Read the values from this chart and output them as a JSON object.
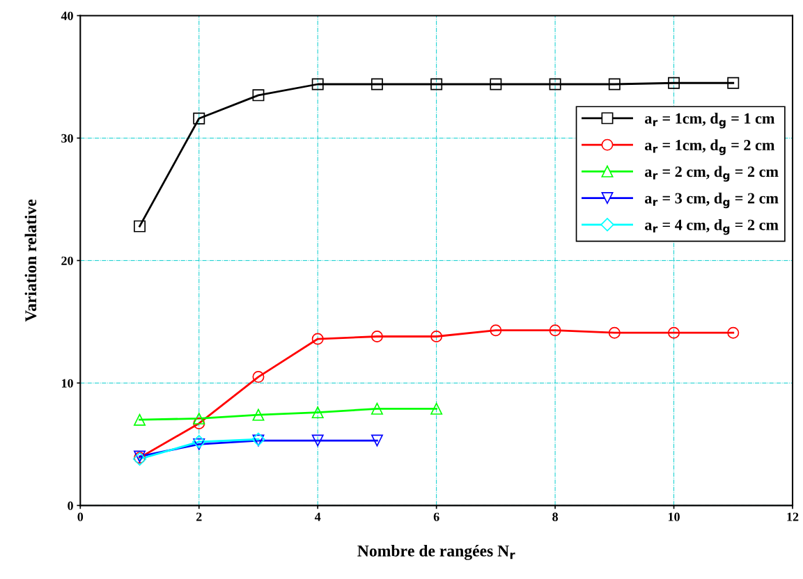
{
  "chart_data": {
    "type": "line",
    "xlabel": "Nombre de rangées N$_{r}$",
    "ylabel": "Variation relative",
    "xlim": [
      0,
      12
    ],
    "xticks": [
      0,
      2,
      4,
      6,
      8,
      10,
      12
    ],
    "ylim": [
      0,
      40
    ],
    "yticks": [
      0,
      10,
      20,
      30,
      40
    ],
    "grid": true,
    "legend": "top right",
    "series": [
      {
        "name": "a$_{r}$ = 1cm, d$_{g}$ = 1 cm",
        "color": "#000000",
        "marker": "square",
        "x": [
          1,
          2,
          3,
          4,
          5,
          6,
          7,
          8,
          9,
          10,
          11
        ],
        "values": [
          22.8,
          31.6,
          33.5,
          34.4,
          34.4,
          34.4,
          34.4,
          34.4,
          34.4,
          34.5,
          34.5
        ]
      },
      {
        "name": "a$_{r}$ = 1cm, d$_{g}$ = 2 cm",
        "color": "#ff0000",
        "marker": "circle",
        "x": [
          1,
          2,
          3,
          4,
          5,
          6,
          7,
          8,
          9,
          10,
          11
        ],
        "values": [
          3.9,
          6.7,
          10.5,
          13.6,
          13.8,
          13.8,
          14.3,
          14.3,
          14.1,
          14.1,
          14.1
        ]
      },
      {
        "name": "a$_{r}$ = 2 cm, d$_{g}$ = 2 cm",
        "color": "#00ff00",
        "marker": "triangle",
        "x": [
          1,
          2,
          3,
          4,
          5,
          6
        ],
        "values": [
          7.0,
          7.1,
          7.4,
          7.6,
          7.9,
          7.9
        ]
      },
      {
        "name": "a$_{r}$ = 3 cm, d$_{g}$ = 2 cm",
        "color": "#0000ff",
        "marker": "triangle_down",
        "x": [
          1,
          2,
          3,
          4,
          5
        ],
        "values": [
          4.0,
          5.0,
          5.3,
          5.3,
          5.3
        ]
      },
      {
        "name": "a$_{r}$ = 4 cm, d$_{g}$ = 2 cm",
        "color": "#00ffff",
        "marker": "diamond",
        "x": [
          1,
          2,
          3
        ],
        "values": [
          3.8,
          5.2,
          5.4
        ]
      }
    ]
  }
}
